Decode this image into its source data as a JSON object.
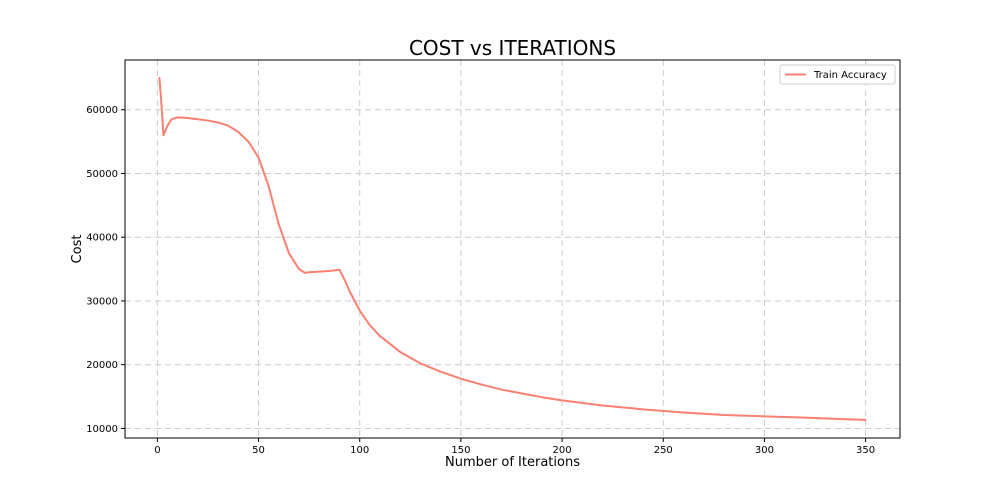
{
  "chart_data": {
    "type": "line",
    "title": "COST vs ITERATIONS",
    "xlabel": "Number of Iterations",
    "ylabel": "Cost",
    "xlim": [
      -16,
      367
    ],
    "ylim": [
      8500,
      67800
    ],
    "xticks": [
      0,
      50,
      100,
      150,
      200,
      250,
      300,
      350
    ],
    "yticks": [
      10000,
      20000,
      30000,
      40000,
      50000,
      60000
    ],
    "grid": true,
    "legend_position": "top-right",
    "series": [
      {
        "name": "Train Accuracy",
        "color": "#fa8072",
        "x": [
          1,
          2,
          3,
          5,
          7,
          10,
          15,
          20,
          25,
          30,
          35,
          40,
          45,
          50,
          55,
          60,
          65,
          70,
          73,
          75,
          80,
          85,
          90,
          93,
          95,
          100,
          105,
          110,
          120,
          130,
          140,
          150,
          160,
          170,
          180,
          190,
          200,
          220,
          240,
          260,
          280,
          300,
          320,
          340,
          350
        ],
        "y": [
          65000,
          61000,
          56000,
          57500,
          58500,
          58800,
          58700,
          58500,
          58300,
          58000,
          57500,
          56500,
          55000,
          52500,
          48000,
          42000,
          37500,
          35000,
          34400,
          34500,
          34600,
          34700,
          34900,
          33000,
          31500,
          28500,
          26200,
          24500,
          22000,
          20200,
          18900,
          17800,
          16900,
          16100,
          15500,
          14900,
          14400,
          13600,
          13000,
          12500,
          12100,
          11900,
          11700,
          11450,
          11350
        ]
      }
    ]
  }
}
